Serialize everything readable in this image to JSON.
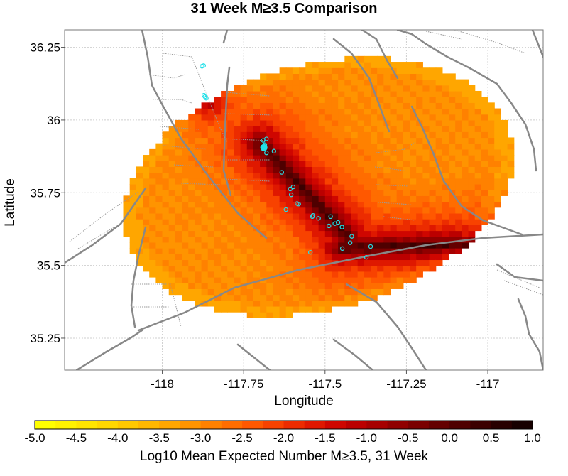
{
  "title": "31 Week M≥3.5 Comparison",
  "x_axis": {
    "label": "Longitude",
    "ticks": [
      {
        "value": -118,
        "label": "-118"
      },
      {
        "value": -117.75,
        "label": "-117.75"
      },
      {
        "value": -117.5,
        "label": "-117.5"
      },
      {
        "value": -117.25,
        "label": "-117.25"
      },
      {
        "value": -117,
        "label": "-117"
      }
    ],
    "range": [
      -118.3,
      -116.83
    ]
  },
  "y_axis": {
    "label": "Latitude",
    "ticks": [
      {
        "value": 36.25,
        "label": "36.25"
      },
      {
        "value": 36,
        "label": "36"
      },
      {
        "value": 35.75,
        "label": "35.75"
      },
      {
        "value": 35.5,
        "label": "35.5"
      },
      {
        "value": 35.25,
        "label": "35.25"
      }
    ],
    "range": [
      35.14,
      36.31
    ]
  },
  "colorbar": {
    "label": "Log10 Mean Expected Number M≥3.5, 31 Week",
    "ticks": [
      "-5.0",
      "-4.5",
      "-4.0",
      "-3.5",
      "-3.0",
      "-2.5",
      "-2.0",
      "-1.5",
      "-1.0",
      "-0.5",
      "0.0",
      "0.5",
      "1.0"
    ],
    "colors": [
      "#ffff00",
      "#fff200",
      "#ffe500",
      "#ffd700",
      "#ffc800",
      "#ffb800",
      "#ffa600",
      "#ff9400",
      "#ff8100",
      "#ff6d00",
      "#ff5800",
      "#f84200",
      "#ec2c00",
      "#df1800",
      "#cf0600",
      "#bb0000",
      "#a60000",
      "#900000",
      "#7a0000",
      "#640000",
      "#4f0000",
      "#3b0000",
      "#280000",
      "#160000"
    ]
  },
  "grid": true,
  "quakes": [
    {
      "lon": -117.878,
      "lat": 36.185
    },
    {
      "lon": -117.873,
      "lat": 36.187
    },
    {
      "lon": -117.872,
      "lat": 36.085
    },
    {
      "lon": -117.869,
      "lat": 36.08
    },
    {
      "lon": -117.865,
      "lat": 36.075
    },
    {
      "lon": -117.69,
      "lat": 35.93
    },
    {
      "lon": -117.685,
      "lat": 35.915
    },
    {
      "lon": -117.68,
      "lat": 35.935
    },
    {
      "lon": -117.688,
      "lat": 35.905,
      "major": true
    },
    {
      "lon": -117.68,
      "lat": 35.887
    },
    {
      "lon": -117.657,
      "lat": 35.893
    },
    {
      "lon": -117.633,
      "lat": 35.82
    },
    {
      "lon": -117.598,
      "lat": 35.77
    },
    {
      "lon": -117.607,
      "lat": 35.763
    },
    {
      "lon": -117.604,
      "lat": 35.743
    },
    {
      "lon": -117.586,
      "lat": 35.713
    },
    {
      "lon": -117.581,
      "lat": 35.711
    },
    {
      "lon": -117.62,
      "lat": 35.692
    },
    {
      "lon": -117.539,
      "lat": 35.668
    },
    {
      "lon": -117.537,
      "lat": 35.672
    },
    {
      "lon": -117.52,
      "lat": 35.662
    },
    {
      "lon": -117.483,
      "lat": 35.668
    },
    {
      "lon": -117.47,
      "lat": 35.644
    },
    {
      "lon": -117.46,
      "lat": 35.648
    },
    {
      "lon": -117.488,
      "lat": 35.636
    },
    {
      "lon": -117.448,
      "lat": 35.632
    },
    {
      "lon": -117.418,
      "lat": 35.6
    },
    {
      "lon": -117.423,
      "lat": 35.578
    },
    {
      "lon": -117.447,
      "lat": 35.558
    },
    {
      "lon": -117.36,
      "lat": 35.565
    },
    {
      "lon": -117.373,
      "lat": 35.528
    },
    {
      "lon": -117.545,
      "lat": 35.545
    }
  ]
}
